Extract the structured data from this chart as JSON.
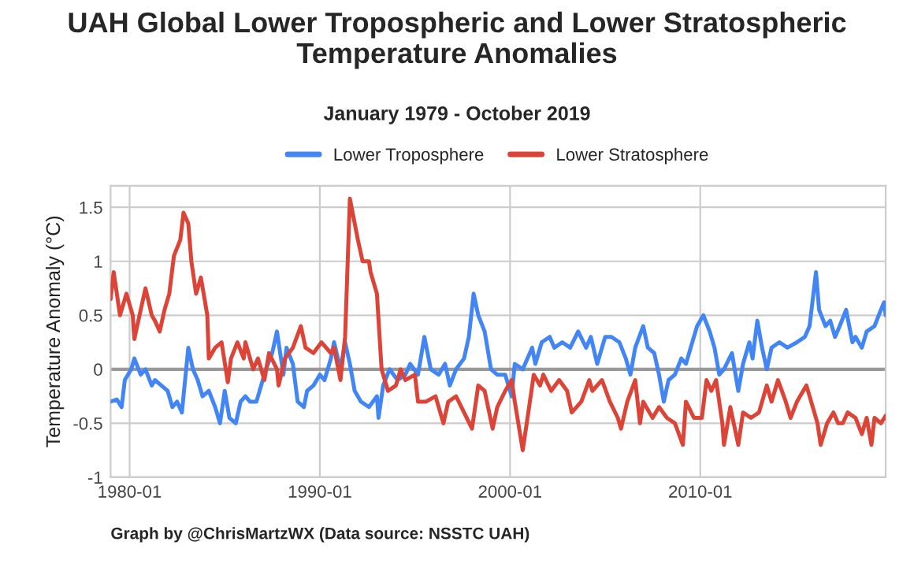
{
  "chart_data": {
    "type": "line",
    "title": "UAH Global Lower Tropospheric and Lower Stratospheric Temperature Anomalies",
    "subtitle": "January 1979 - October 2019",
    "ylabel": "Temperature Anomaly (°C)",
    "annotations": [
      "Graph by @ChrisMartzWX (Data source: NSSTC UAH)"
    ],
    "xlim": [
      "1979-01",
      "2019-10"
    ],
    "xticks": [
      "1980-01",
      "1990-01",
      "2000-01",
      "2010-01"
    ],
    "ylim": [
      -1,
      1.7
    ],
    "yticks": [
      -1,
      -0.5,
      0,
      0.5,
      1,
      1.5
    ],
    "grid": true,
    "legend": "top",
    "marker": "none",
    "line_style": "solid",
    "ref_lines": [
      {
        "axis": "y",
        "value": 0,
        "color": "#999999"
      }
    ],
    "series": [
      {
        "name": "Lower Troposphere",
        "color": "#4285f4",
        "x": [
          "1979-01",
          "1979-05",
          "1979-08",
          "1979-10",
          "1980-02",
          "1980-04",
          "1980-08",
          "1980-11",
          "1981-03",
          "1981-05",
          "1981-09",
          "1982-01",
          "1982-04",
          "1982-07",
          "1982-10",
          "1983-02",
          "1983-05",
          "1983-08",
          "1983-11",
          "1984-03",
          "1984-07",
          "1984-10",
          "1985-01",
          "1985-04",
          "1985-08",
          "1985-11",
          "1986-02",
          "1986-05",
          "1986-09",
          "1987-01",
          "1987-03",
          "1987-07",
          "1987-10",
          "1988-02",
          "1988-04",
          "1988-08",
          "1988-11",
          "1989-03",
          "1989-05",
          "1989-09",
          "1990-01",
          "1990-04",
          "1990-08",
          "1990-10",
          "1991-02",
          "1991-05",
          "1991-08",
          "1991-11",
          "1992-03",
          "1992-08",
          "1993-01",
          "1993-02",
          "1993-05",
          "1993-09",
          "1994-02",
          "1994-07",
          "1994-10",
          "1995-03",
          "1995-07",
          "1995-11",
          "1996-04",
          "1996-08",
          "1996-11",
          "1997-03",
          "1997-08",
          "1997-11",
          "1998-02",
          "1998-05",
          "1998-09",
          "1999-01",
          "1999-05",
          "1999-10",
          "2000-02",
          "2000-04",
          "2000-09",
          "2001-03",
          "2001-05",
          "2001-09",
          "2002-02",
          "2002-05",
          "2002-10",
          "2003-03",
          "2003-08",
          "2004-01",
          "2004-04",
          "2004-08",
          "2005-01",
          "2005-05",
          "2005-10",
          "2006-02",
          "2006-05",
          "2006-08",
          "2007-01",
          "2007-04",
          "2007-08",
          "2007-11",
          "2008-02",
          "2008-05",
          "2008-09",
          "2009-01",
          "2009-04",
          "2009-07",
          "2009-11",
          "2010-03",
          "2010-07",
          "2010-10",
          "2011-01",
          "2011-04",
          "2011-09",
          "2012-01",
          "2012-04",
          "2012-08",
          "2012-10",
          "2013-01",
          "2013-04",
          "2013-07",
          "2013-10",
          "2014-03",
          "2014-08",
          "2015-02",
          "2015-07",
          "2015-10",
          "2016-02",
          "2016-04",
          "2016-08",
          "2016-11",
          "2017-02",
          "2017-05",
          "2017-09",
          "2018-01",
          "2018-03",
          "2018-07",
          "2018-10",
          "2019-03",
          "2019-07",
          "2019-09",
          "2019-10"
        ],
        "values": [
          -0.3,
          -0.28,
          -0.35,
          -0.1,
          0.0,
          0.1,
          -0.05,
          0.0,
          -0.15,
          -0.1,
          -0.15,
          -0.2,
          -0.35,
          -0.3,
          -0.4,
          0.2,
          0.0,
          -0.1,
          -0.25,
          -0.2,
          -0.35,
          -0.5,
          -0.2,
          -0.45,
          -0.5,
          -0.3,
          -0.25,
          -0.3,
          -0.3,
          -0.1,
          0.0,
          0.15,
          0.35,
          -0.05,
          0.2,
          0.05,
          -0.3,
          -0.35,
          -0.2,
          -0.15,
          -0.05,
          -0.1,
          0.1,
          0.25,
          0.0,
          0.25,
          0.05,
          -0.2,
          -0.3,
          -0.35,
          -0.25,
          -0.45,
          -0.15,
          0.0,
          -0.1,
          -0.05,
          0.05,
          -0.05,
          0.3,
          0.0,
          -0.05,
          0.05,
          -0.15,
          0.0,
          0.1,
          0.3,
          0.7,
          0.5,
          0.35,
          0.0,
          -0.05,
          -0.05,
          -0.25,
          0.05,
          0.0,
          0.2,
          0.05,
          0.25,
          0.3,
          0.2,
          0.25,
          0.2,
          0.35,
          0.2,
          0.3,
          0.05,
          0.3,
          0.3,
          0.25,
          0.1,
          -0.05,
          0.2,
          0.4,
          0.2,
          0.15,
          -0.05,
          -0.3,
          -0.1,
          -0.05,
          0.1,
          0.05,
          0.2,
          0.4,
          0.5,
          0.35,
          0.2,
          -0.05,
          0.0,
          0.15,
          -0.2,
          0.05,
          0.25,
          0.1,
          0.45,
          0.2,
          0.0,
          0.2,
          0.25,
          0.2,
          0.25,
          0.3,
          0.4,
          0.9,
          0.55,
          0.4,
          0.45,
          0.3,
          0.4,
          0.55,
          0.25,
          0.3,
          0.2,
          0.35,
          0.4,
          0.55,
          0.62,
          0.5
        ]
      },
      {
        "name": "Lower Stratosphere",
        "color": "#db4437",
        "x": [
          "1979-01",
          "1979-03",
          "1979-07",
          "1979-11",
          "1980-03",
          "1980-04",
          "1980-08",
          "1980-11",
          "1981-03",
          "1981-05",
          "1981-08",
          "1981-11",
          "1982-02",
          "1982-05",
          "1982-09",
          "1982-11",
          "1983-02",
          "1983-04",
          "1983-07",
          "1983-10",
          "1984-02",
          "1984-03",
          "1984-07",
          "1984-11",
          "1985-03",
          "1985-05",
          "1985-09",
          "1986-01",
          "1986-02",
          "1986-07",
          "1986-10",
          "1987-02",
          "1987-05",
          "1987-10",
          "1987-11",
          "1988-03",
          "1988-08",
          "1989-01",
          "1989-04",
          "1989-09",
          "1990-02",
          "1990-08",
          "1990-10",
          "1991-02",
          "1991-05",
          "1991-08",
          "1992-01",
          "1992-04",
          "1992-08",
          "1992-09",
          "1993-01",
          "1993-04",
          "1993-08",
          "1994-01",
          "1994-04",
          "1994-07",
          "1995-01",
          "1995-03",
          "1995-08",
          "1996-02",
          "1996-07",
          "1996-10",
          "1997-03",
          "1997-08",
          "1998-01",
          "1998-05",
          "1998-09",
          "1999-02",
          "1999-05",
          "1999-10",
          "2000-02",
          "2000-04",
          "2000-09",
          "2001-01",
          "2001-04",
          "2001-08",
          "2001-10",
          "2002-03",
          "2002-08",
          "2003-01",
          "2003-04",
          "2003-10",
          "2004-03",
          "2004-05",
          "2004-11",
          "2005-04",
          "2005-09",
          "2005-11",
          "2006-03",
          "2006-08",
          "2006-11",
          "2007-01",
          "2007-07",
          "2007-11",
          "2008-04",
          "2008-09",
          "2009-02",
          "2009-04",
          "2009-09",
          "2010-02",
          "2010-05",
          "2010-08",
          "2010-11",
          "2011-03",
          "2011-04",
          "2011-08",
          "2012-01",
          "2012-04",
          "2012-09",
          "2013-02",
          "2013-07",
          "2013-10",
          "2014-02",
          "2014-07",
          "2014-10",
          "2015-02",
          "2015-04",
          "2015-08",
          "2015-11",
          "2016-03",
          "2016-05",
          "2016-09",
          "2017-01",
          "2017-04",
          "2017-07",
          "2017-10",
          "2018-03",
          "2018-07",
          "2018-10",
          "2019-01",
          "2019-03",
          "2019-07",
          "2019-10"
        ],
        "values": [
          0.65,
          0.9,
          0.5,
          0.7,
          0.5,
          0.28,
          0.55,
          0.75,
          0.5,
          0.45,
          0.35,
          0.55,
          0.7,
          1.05,
          1.2,
          1.45,
          1.35,
          1.0,
          0.7,
          0.85,
          0.5,
          0.1,
          0.2,
          0.25,
          -0.12,
          0.1,
          0.25,
          0.1,
          0.25,
          0.0,
          0.1,
          -0.1,
          0.15,
          0.0,
          -0.15,
          0.1,
          0.2,
          0.4,
          0.2,
          0.15,
          0.25,
          0.15,
          0.2,
          -0.1,
          0.3,
          1.58,
          1.2,
          1.0,
          1.0,
          0.9,
          0.7,
          0.0,
          -0.2,
          -0.15,
          0.0,
          -0.1,
          -0.05,
          -0.3,
          -0.3,
          -0.25,
          -0.5,
          -0.3,
          -0.25,
          -0.4,
          -0.55,
          -0.15,
          -0.2,
          -0.55,
          -0.35,
          -0.2,
          -0.1,
          -0.3,
          -0.75,
          -0.35,
          -0.05,
          -0.15,
          -0.05,
          -0.2,
          -0.1,
          -0.2,
          -0.4,
          -0.3,
          -0.1,
          -0.2,
          -0.1,
          -0.3,
          -0.45,
          -0.55,
          -0.3,
          -0.1,
          -0.5,
          -0.3,
          -0.45,
          -0.35,
          -0.45,
          -0.5,
          -0.7,
          -0.3,
          -0.45,
          -0.45,
          -0.1,
          -0.2,
          -0.1,
          -0.5,
          -0.7,
          -0.35,
          -0.7,
          -0.4,
          -0.45,
          -0.4,
          -0.15,
          -0.3,
          -0.1,
          -0.3,
          -0.45,
          -0.3,
          -0.25,
          -0.15,
          -0.3,
          -0.5,
          -0.7,
          -0.5,
          -0.4,
          -0.5,
          -0.5,
          -0.4,
          -0.45,
          -0.6,
          -0.45,
          -0.7,
          -0.45,
          -0.5,
          -0.43
        ]
      }
    ]
  }
}
